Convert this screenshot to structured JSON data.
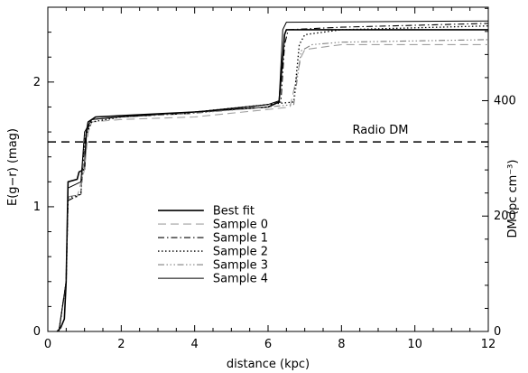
{
  "chart_data": {
    "type": "line",
    "title": "",
    "xlabel": "distance (kpc)",
    "ylabel_left": "E(g−r) (mag)",
    "ylabel_right": "DM (pc cm⁻³)",
    "xlim": [
      0,
      12
    ],
    "ylim_left": [
      0,
      2.6
    ],
    "ylim_right": [
      0,
      562
    ],
    "x_ticks": [
      "0",
      "2",
      "4",
      "6",
      "8",
      "10",
      "12"
    ],
    "y_ticks_left": [
      "0",
      "1",
      "2"
    ],
    "y_ticks_right": [
      "0",
      "200",
      "400"
    ],
    "grid": false,
    "legend_position": "center-left",
    "annotation": {
      "label": "Radio DM",
      "value_left_axis": 1.52
    },
    "series": [
      {
        "name": "Best fit",
        "style": "solid",
        "color": "#000000",
        "x": [
          0.25,
          0.35,
          0.45,
          0.5,
          0.55,
          0.8,
          0.85,
          1.0,
          1.05,
          1.1,
          1.2,
          1.3,
          2.0,
          4.0,
          6.0,
          6.3,
          6.45,
          6.5,
          12.0
        ],
        "y": [
          0.0,
          0.03,
          0.1,
          0.4,
          1.2,
          1.22,
          1.28,
          1.3,
          1.6,
          1.68,
          1.7,
          1.72,
          1.73,
          1.76,
          1.8,
          1.84,
          2.38,
          2.42,
          2.42
        ]
      },
      {
        "name": "Sample 0",
        "style": "dashed",
        "color": "#a0a0a0",
        "x": [
          0.3,
          0.5,
          0.55,
          0.8,
          1.0,
          1.1,
          1.2,
          2.0,
          4.0,
          6.0,
          6.6,
          6.9,
          7.0,
          8.0,
          12.0
        ],
        "y": [
          0.0,
          0.4,
          1.05,
          1.08,
          1.3,
          1.6,
          1.68,
          1.7,
          1.72,
          1.78,
          1.8,
          2.2,
          2.26,
          2.3,
          2.3
        ]
      },
      {
        "name": "Sample 1",
        "style": "dashdot",
        "color": "#000000",
        "x": [
          0.3,
          0.5,
          0.55,
          0.9,
          1.0,
          1.05,
          1.2,
          2.0,
          4.0,
          6.0,
          6.35,
          6.45,
          6.55,
          8.0,
          12.0
        ],
        "y": [
          0.0,
          0.4,
          1.05,
          1.1,
          1.5,
          1.6,
          1.7,
          1.72,
          1.75,
          1.82,
          1.84,
          2.3,
          2.42,
          2.44,
          2.47
        ]
      },
      {
        "name": "Sample 2",
        "style": "dotted",
        "color": "#000000",
        "x": [
          0.3,
          0.5,
          0.55,
          0.9,
          1.0,
          1.2,
          2.0,
          4.0,
          6.0,
          6.7,
          6.85,
          7.0,
          8.0,
          12.0
        ],
        "y": [
          0.0,
          0.4,
          1.07,
          1.1,
          1.55,
          1.68,
          1.72,
          1.76,
          1.82,
          1.84,
          2.3,
          2.38,
          2.42,
          2.45
        ]
      },
      {
        "name": "Sample 3",
        "style": "dashdotdotdot",
        "color": "#808080",
        "x": [
          0.3,
          0.5,
          0.55,
          0.9,
          1.0,
          1.2,
          2.0,
          4.0,
          6.0,
          6.7,
          6.9,
          7.2,
          8.0,
          12.0
        ],
        "y": [
          0.0,
          0.4,
          1.08,
          1.1,
          1.6,
          1.7,
          1.72,
          1.75,
          1.8,
          1.82,
          2.25,
          2.3,
          2.32,
          2.34
        ]
      },
      {
        "name": "Sample 4",
        "style": "solid-thin",
        "color": "#000000",
        "x": [
          0.3,
          0.5,
          0.55,
          0.9,
          1.0,
          1.2,
          2.0,
          4.0,
          6.0,
          6.3,
          6.4,
          6.5,
          12.0
        ],
        "y": [
          0.0,
          0.4,
          1.15,
          1.2,
          1.6,
          1.7,
          1.72,
          1.76,
          1.82,
          1.85,
          2.42,
          2.48,
          2.49
        ]
      }
    ]
  }
}
